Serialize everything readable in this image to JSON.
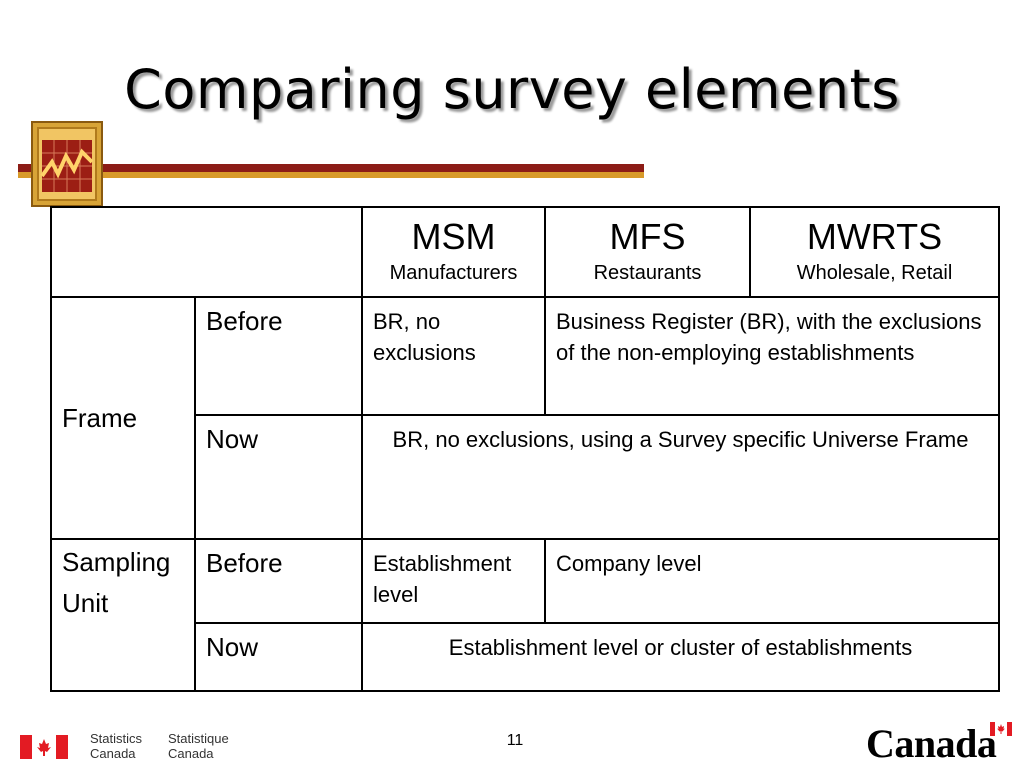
{
  "slide": {
    "title": "Comparing survey elements",
    "page_number": "11"
  },
  "table": {
    "columns": [
      {
        "code": "MSM",
        "desc": "Manufacturers"
      },
      {
        "code": "MFS",
        "desc": "Restaurants"
      },
      {
        "code": "MWRTS",
        "desc": "Wholesale, Retail"
      }
    ],
    "frame": {
      "label": "Frame",
      "before_label": "Before",
      "before_msm": "BR, no exclusions",
      "before_mfs_mwrts": "Business Register (BR), with the exclusions of the non-employing establishments",
      "now_label": "Now",
      "now_all": "BR, no exclusions, using a Survey specific Universe Frame"
    },
    "sampling": {
      "label_line1": "Sampling",
      "label_line2": "Unit",
      "before_label": "Before",
      "before_msm": "Establishment level",
      "before_mfs_mwrts": "Company level",
      "now_label": "Now",
      "now_all": "Establishment level or cluster of establishments"
    }
  },
  "footer": {
    "statistics_en_1": "Statistics",
    "statistics_en_2": "Canada",
    "statistics_fr_1": "Statistique",
    "statistics_fr_2": "Canada",
    "wordmark": "Canada"
  },
  "colors": {
    "rule_red": "#8c1c16",
    "rule_gold": "#d89a2a",
    "flag_red": "#e31b23"
  }
}
